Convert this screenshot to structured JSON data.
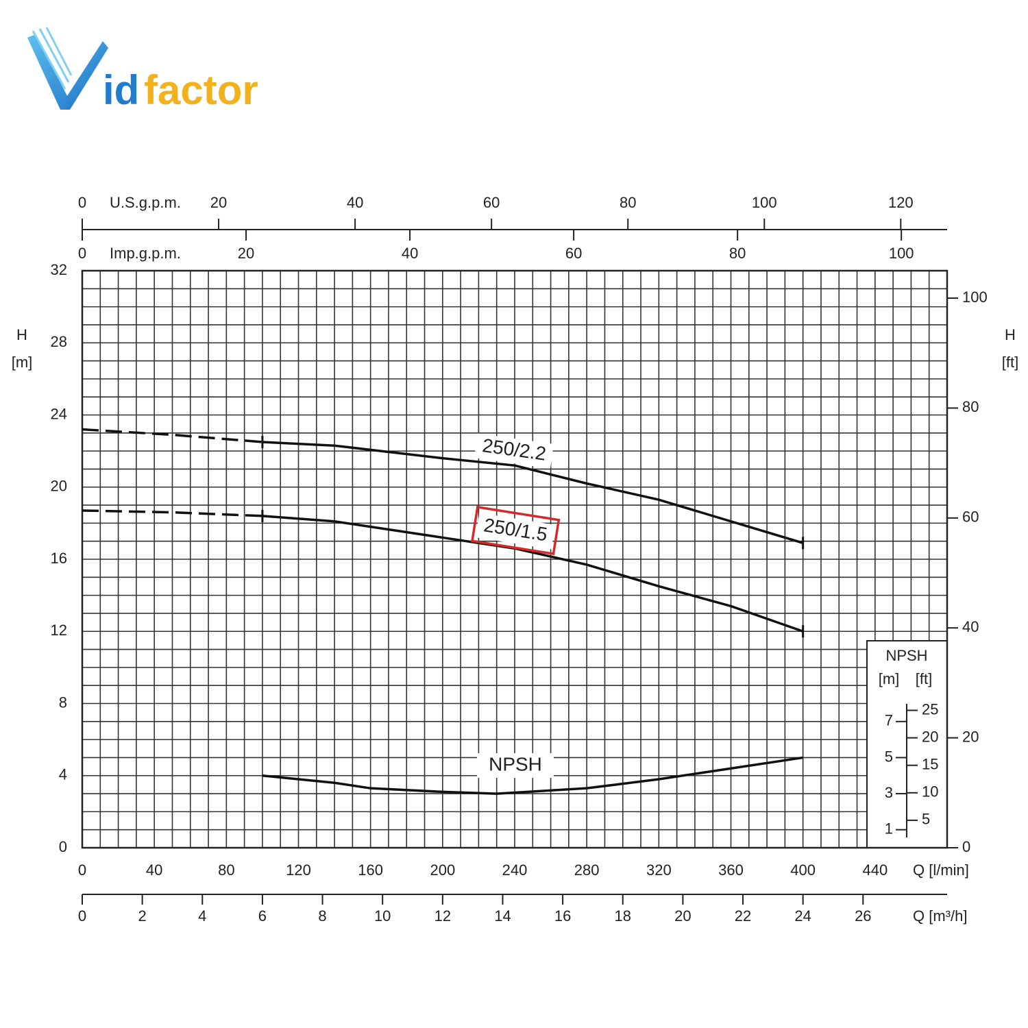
{
  "logo": {
    "blue": "id",
    "orange": "factor"
  },
  "chart_data": {
    "type": "line",
    "xlabel": "Q [l/min]",
    "ylabel": "H",
    "yunit": "[m]",
    "y2label": "H",
    "y2unit": "[ft]",
    "xlim": [
      0,
      480
    ],
    "xticks": [
      0,
      40,
      80,
      120,
      160,
      200,
      240,
      280,
      320,
      360,
      400,
      440
    ],
    "ylim": [
      0,
      32
    ],
    "yticks": [
      0,
      4,
      8,
      12,
      16,
      20,
      24,
      28,
      32
    ],
    "y2lim": [
      0,
      104.99
    ],
    "y2ticks": [
      0,
      20,
      40,
      60,
      80,
      100
    ],
    "grid": true,
    "grid_step": {
      "x": 10,
      "y": 1
    },
    "top_axes": [
      {
        "label": "U.S.g.p.m.",
        "xlim": [
          0,
          126.8
        ],
        "xticks": [
          0,
          20,
          40,
          60,
          80,
          100,
          120
        ]
      },
      {
        "label": "Imp.g.p.m.",
        "xlim": [
          0,
          105.59
        ],
        "xticks": [
          0,
          20,
          40,
          60,
          80,
          100
        ]
      }
    ],
    "bottom_axis2": {
      "label": "Q [m³/h]",
      "xlim": [
        0,
        28.8
      ],
      "xticks": [
        0,
        2,
        4,
        6,
        8,
        10,
        12,
        14,
        16,
        18,
        20,
        22,
        24,
        26
      ]
    },
    "series": [
      {
        "name": "250/2.2",
        "color": "#111111",
        "dashed_to": 100,
        "x": [
          0,
          50,
          100,
          140,
          200,
          240,
          280,
          320,
          360,
          400
        ],
        "values": [
          23.2,
          22.9,
          22.5,
          22.3,
          21.6,
          21.2,
          20.2,
          19.3,
          18.1,
          16.9
        ]
      },
      {
        "name": "250/1.5",
        "color": "#111111",
        "dashed_to": 100,
        "highlight": "#d42a2a",
        "x": [
          0,
          50,
          100,
          140,
          200,
          240,
          280,
          320,
          360,
          400
        ],
        "values": [
          18.7,
          18.6,
          18.4,
          18.1,
          17.2,
          16.6,
          15.7,
          14.5,
          13.4,
          12.0
        ]
      },
      {
        "name": "NPSH",
        "color": "#111111",
        "x": [
          100,
          140,
          160,
          200,
          230,
          280,
          320,
          360,
          400
        ],
        "values": [
          4.0,
          3.6,
          3.3,
          3.1,
          3.0,
          3.3,
          3.8,
          4.4,
          5.0
        ]
      }
    ],
    "npsh_scale": {
      "title": "NPSH",
      "m_label": "[m]",
      "ft_label": "[ft]",
      "yticks": [
        1,
        3,
        5,
        7
      ],
      "y2ticks": [
        5,
        10,
        15,
        20,
        25
      ]
    }
  }
}
